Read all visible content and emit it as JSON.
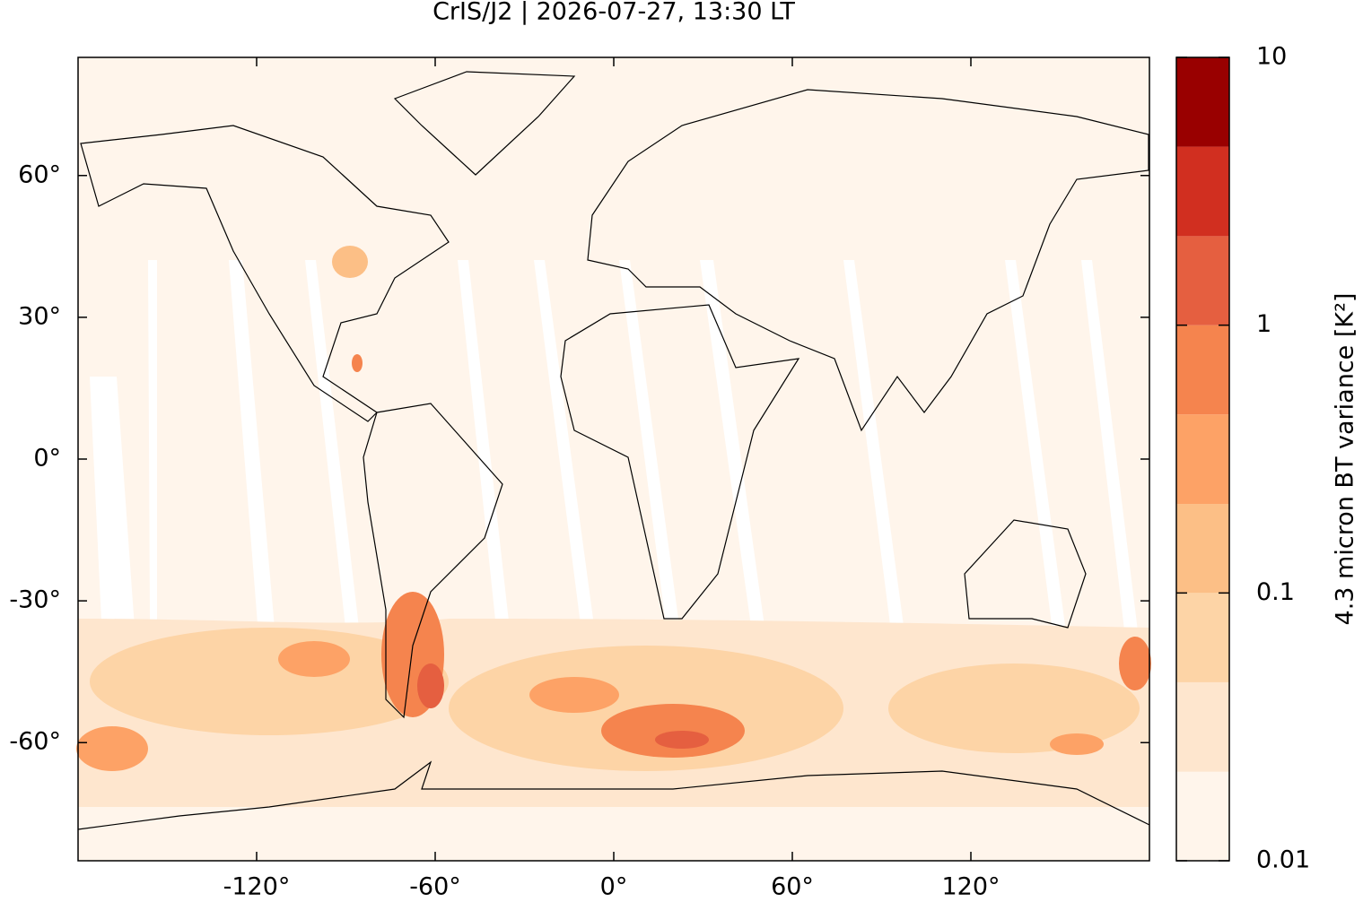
{
  "chart_data": {
    "type": "map",
    "title": "CrIS/J2 | 2026-07-27, 13:30 LT",
    "xlim": [
      -180,
      180
    ],
    "ylim": [
      -85,
      85
    ],
    "xticks": [
      {
        "value": -120,
        "label": "-120°"
      },
      {
        "value": -60,
        "label": "-60°"
      },
      {
        "value": 0,
        "label": "0°"
      },
      {
        "value": 60,
        "label": "60°"
      },
      {
        "value": 120,
        "label": "120°"
      }
    ],
    "yticks": [
      {
        "value": -60,
        "label": "-60°"
      },
      {
        "value": -30,
        "label": "-30°"
      },
      {
        "value": 0,
        "label": "0°"
      },
      {
        "value": 30,
        "label": "30°"
      },
      {
        "value": 60,
        "label": "60°"
      }
    ],
    "colorbar": {
      "label": "4.3 micron BT variance [K²]",
      "scale": "log",
      "lim": [
        0.01,
        10
      ],
      "ticks": [
        0.01,
        0.1,
        1,
        10
      ],
      "levels": [
        0.01,
        0.0215,
        0.0464,
        0.1,
        0.215,
        0.464,
        1,
        2.15,
        4.64,
        10
      ],
      "colors": [
        "#fff5eb",
        "#fee6ce",
        "#fdd4a6",
        "#fcbf86",
        "#fda266",
        "#f5844e",
        "#e55f40",
        "#d12f20",
        "#990000"
      ]
    }
  }
}
